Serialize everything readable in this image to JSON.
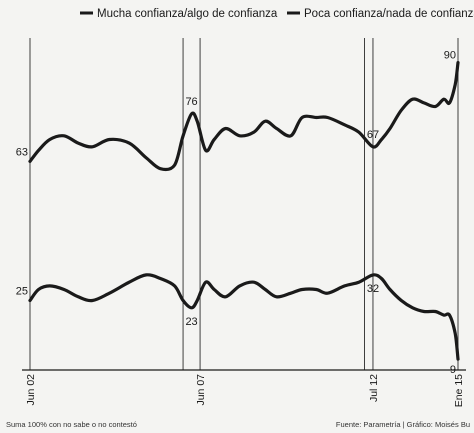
{
  "footer": {
    "note": "Suma 100% con no sabe o no contestó",
    "source": "Fuente: Parametría | Gráfico: Moisés Bu"
  },
  "chart_data": {
    "type": "line",
    "x_ticks": [
      "Jun 02",
      "Jun 07",
      "Jul 12",
      "Ene 15"
    ],
    "xlim": [
      "2002-06",
      "2015-01"
    ],
    "ylim": [
      0,
      100
    ],
    "grid": false,
    "legend_position": "top",
    "series": [
      {
        "name": "Mucha confianza/algo de confianza",
        "color": "#1a1a1a",
        "points": [
          [
            "2002-06",
            63
          ],
          [
            "2002-09",
            66
          ],
          [
            "2003-01",
            69
          ],
          [
            "2003-06",
            70
          ],
          [
            "2003-11",
            68
          ],
          [
            "2004-04",
            67
          ],
          [
            "2004-10",
            69
          ],
          [
            "2005-05",
            68
          ],
          [
            "2005-11",
            64
          ],
          [
            "2006-04",
            61
          ],
          [
            "2006-09",
            62
          ],
          [
            "2006-12",
            70
          ],
          [
            "2007-03",
            76
          ],
          [
            "2007-05",
            74
          ],
          [
            "2007-08",
            66
          ],
          [
            "2007-11",
            69
          ],
          [
            "2008-03",
            72
          ],
          [
            "2008-08",
            70
          ],
          [
            "2009-01",
            71
          ],
          [
            "2009-05",
            74
          ],
          [
            "2009-09",
            72
          ],
          [
            "2010-02",
            70
          ],
          [
            "2010-06",
            75
          ],
          [
            "2010-11",
            75
          ],
          [
            "2011-03",
            75
          ],
          [
            "2011-09",
            73
          ],
          [
            "2012-02",
            71
          ],
          [
            "2012-07",
            67
          ],
          [
            "2012-10",
            69
          ],
          [
            "2013-01",
            72
          ],
          [
            "2013-05",
            77
          ],
          [
            "2013-09",
            80
          ],
          [
            "2014-01",
            79
          ],
          [
            "2014-05",
            78
          ],
          [
            "2014-08",
            80
          ],
          [
            "2014-10",
            79
          ],
          [
            "2014-12",
            84
          ],
          [
            "2015-01",
            90
          ]
        ],
        "labels": [
          {
            "x": "2002-06",
            "text": "63",
            "pos": "left"
          },
          {
            "x": "2007-03",
            "text": "76",
            "pos": "above"
          },
          {
            "x": "2012-07",
            "text": "67",
            "pos": "above"
          },
          {
            "x": "2015-01",
            "text": "90",
            "pos": "above-left"
          }
        ]
      },
      {
        "name": "Poca confianza/nada de confianza",
        "color": "#1a1a1a",
        "points": [
          [
            "2002-06",
            25
          ],
          [
            "2002-09",
            28
          ],
          [
            "2003-01",
            29
          ],
          [
            "2003-06",
            28
          ],
          [
            "2003-11",
            26
          ],
          [
            "2004-04",
            25
          ],
          [
            "2004-10",
            27
          ],
          [
            "2005-05",
            30
          ],
          [
            "2005-11",
            32
          ],
          [
            "2006-04",
            31
          ],
          [
            "2006-09",
            29
          ],
          [
            "2006-12",
            25
          ],
          [
            "2007-03",
            23
          ],
          [
            "2007-05",
            25
          ],
          [
            "2007-08",
            30
          ],
          [
            "2007-11",
            28
          ],
          [
            "2008-03",
            26
          ],
          [
            "2008-08",
            29
          ],
          [
            "2009-01",
            30
          ],
          [
            "2009-05",
            28
          ],
          [
            "2009-09",
            26
          ],
          [
            "2010-02",
            27
          ],
          [
            "2010-06",
            28
          ],
          [
            "2010-11",
            28
          ],
          [
            "2011-03",
            27
          ],
          [
            "2011-09",
            29
          ],
          [
            "2012-02",
            30
          ],
          [
            "2012-07",
            32
          ],
          [
            "2012-10",
            31
          ],
          [
            "2013-01",
            28
          ],
          [
            "2013-05",
            25
          ],
          [
            "2013-09",
            23
          ],
          [
            "2014-01",
            22
          ],
          [
            "2014-05",
            22
          ],
          [
            "2014-08",
            21
          ],
          [
            "2014-10",
            21
          ],
          [
            "2014-12",
            16
          ],
          [
            "2015-01",
            9
          ]
        ],
        "labels": [
          {
            "x": "2002-06",
            "text": "25",
            "pos": "left"
          },
          {
            "x": "2007-03",
            "text": "23",
            "pos": "below"
          },
          {
            "x": "2012-07",
            "text": "32",
            "pos": "below"
          },
          {
            "x": "2015-01",
            "text": "9",
            "pos": "below-left"
          }
        ]
      }
    ]
  }
}
